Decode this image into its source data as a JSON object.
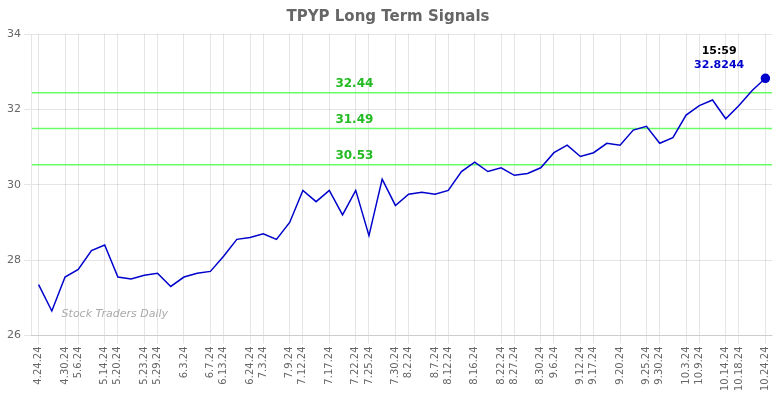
{
  "chart_data": {
    "type": "line",
    "title": "TPYP Long Term Signals",
    "categories": [
      "4.24.24",
      null,
      "4.30.24",
      "5.6.24",
      null,
      "5.14.24",
      "5.20.24",
      null,
      "5.23.24",
      "5.29.24",
      null,
      "6.3.24",
      null,
      "6.7.24",
      "6.13.24",
      null,
      "6.24.24",
      "7.3.24",
      null,
      "7.9.24",
      "7.12.24",
      null,
      "7.17.24",
      null,
      "7.22.24",
      "7.25.24",
      null,
      "7.30.24",
      "8.2.24",
      null,
      "8.7.24",
      "8.12.24",
      null,
      "8.16.24",
      null,
      "8.22.24",
      "8.27.24",
      null,
      "8.30.24",
      "9.6.24",
      null,
      "9.12.24",
      "9.17.24",
      null,
      "9.20.24",
      null,
      "9.25.24",
      "9.30.24",
      null,
      "10.3.24",
      "10.9.24",
      null,
      "10.14.24",
      "10.18.24",
      null,
      "10.24.24"
    ],
    "series": [
      {
        "color": "#0000cc",
        "values": [
          27.35,
          26.65,
          27.55,
          27.75,
          28.25,
          28.4,
          27.55,
          27.5,
          27.6,
          27.65,
          27.3,
          27.55,
          27.65,
          27.7,
          28.1,
          28.55,
          28.6,
          28.7,
          28.55,
          29.0,
          29.85,
          29.55,
          29.85,
          29.2,
          29.85,
          28.65,
          30.15,
          29.45,
          29.75,
          29.8,
          29.75,
          29.85,
          30.35,
          30.6,
          30.35,
          30.45,
          30.25,
          30.3,
          30.45,
          30.85,
          31.05,
          30.75,
          30.85,
          31.1,
          31.05,
          31.45,
          31.55,
          31.1,
          31.25,
          31.85,
          32.1,
          32.25,
          31.75,
          32.1,
          32.5,
          32.8244
        ]
      }
    ],
    "ylim": [
      26,
      34
    ],
    "yticks": [
      26,
      28,
      30,
      32,
      34
    ],
    "grid": true,
    "annotations": [
      {
        "type": "hline",
        "y": 30.53,
        "label": "30.53",
        "color": "#66ff66",
        "label_color": "#22bb22"
      },
      {
        "type": "hline",
        "y": 31.49,
        "label": "31.49",
        "color": "#66ff66",
        "label_color": "#22bb22"
      },
      {
        "type": "hline",
        "y": 32.44,
        "label": "32.44",
        "color": "#66ff66",
        "label_color": "#22bb22"
      },
      {
        "type": "last_point",
        "time": "15:59",
        "time_color": "#000000",
        "label": "32.8244",
        "color": "#0000cc"
      },
      {
        "type": "watermark",
        "text": "Stock Traders Daily",
        "color": "#aaaaaa"
      }
    ]
  }
}
